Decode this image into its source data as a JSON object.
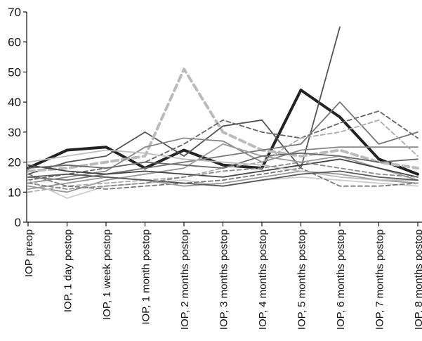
{
  "chart_data": {
    "type": "line",
    "categories": [
      "IOP preop",
      "IOP, 1 day postop",
      "IOP, 1 week postop",
      "IOP, 1 month postop",
      "IOP, 2 months postop",
      "IOP, 3 months postop",
      "IOP, 4 months postop",
      "IOP, 5 months postop",
      "IOP, 6 months postop",
      "IOP, 7 months postop",
      "IOP, 8 months postop"
    ],
    "ylim": [
      0,
      70
    ],
    "yticks": [
      "0",
      "10",
      "20",
      "30",
      "40",
      "50",
      "60",
      "70"
    ],
    "grid": false,
    "legend": "none",
    "series": [
      {
        "color": "#222222",
        "style": "solid",
        "values": [
          18,
          24,
          25,
          18,
          24,
          19,
          18,
          44,
          35,
          21,
          16
        ]
      },
      {
        "color": "#555555",
        "style": "solid",
        "values": [
          16,
          20,
          22,
          30,
          22,
          32,
          34,
          18,
          65,
          null,
          null
        ]
      },
      {
        "color": "#bbbbbb",
        "style": "dashed",
        "values": [
          17,
          18,
          20,
          22,
          51,
          30,
          24,
          22,
          24,
          20,
          18
        ]
      },
      {
        "color": "#666666",
        "style": "dashed",
        "values": [
          14,
          16,
          18,
          20,
          26,
          34,
          30,
          28,
          33,
          37,
          28
        ]
      },
      {
        "color": "#777777",
        "style": "solid",
        "values": [
          15,
          14,
          16,
          18,
          20,
          22,
          24,
          26,
          40,
          26,
          30
        ]
      },
      {
        "color": "#888888",
        "style": "solid",
        "values": [
          13,
          15,
          17,
          25,
          28,
          27,
          20,
          24,
          25,
          25,
          25
        ]
      },
      {
        "color": "#999999",
        "style": "solid",
        "values": [
          12,
          10,
          14,
          16,
          18,
          26,
          22,
          20,
          22,
          18,
          14
        ]
      },
      {
        "color": "#aaaaaa",
        "style": "dashed",
        "values": [
          10,
          12,
          13,
          14,
          15,
          18,
          20,
          28,
          30,
          34,
          22
        ]
      },
      {
        "color": "#444444",
        "style": "solid",
        "values": [
          19,
          17,
          16,
          17,
          16,
          15,
          17,
          19,
          21,
          18,
          15
        ]
      },
      {
        "color": "#cccccc",
        "style": "solid",
        "values": [
          14,
          8,
          12,
          13,
          14,
          12,
          14,
          15,
          14,
          13,
          12
        ]
      },
      {
        "color": "#7a7a7a",
        "style": "dashed",
        "values": [
          16,
          12,
          11,
          12,
          13,
          14,
          16,
          18,
          12,
          12,
          13
        ]
      },
      {
        "color": "#9a9a9a",
        "style": "solid",
        "values": [
          11,
          13,
          15,
          14,
          12,
          13,
          15,
          17,
          16,
          14,
          13
        ]
      },
      {
        "color": "#6a6a6a",
        "style": "solid",
        "values": [
          18,
          19,
          18,
          20,
          19,
          18,
          22,
          23,
          22,
          20,
          21
        ]
      },
      {
        "color": "#bdbdbd",
        "style": "solid",
        "values": [
          20,
          22,
          24,
          23,
          21,
          20,
          19,
          17,
          15,
          14,
          14
        ]
      },
      {
        "color": "#5a5a5a",
        "style": "solid",
        "values": [
          15,
          16,
          15,
          14,
          13,
          12,
          14,
          16,
          17,
          15,
          14
        ]
      },
      {
        "color": "#8a8a8a",
        "style": "dashed",
        "values": [
          13,
          11,
          12,
          13,
          15,
          17,
          18,
          20,
          18,
          16,
          15
        ]
      }
    ]
  }
}
